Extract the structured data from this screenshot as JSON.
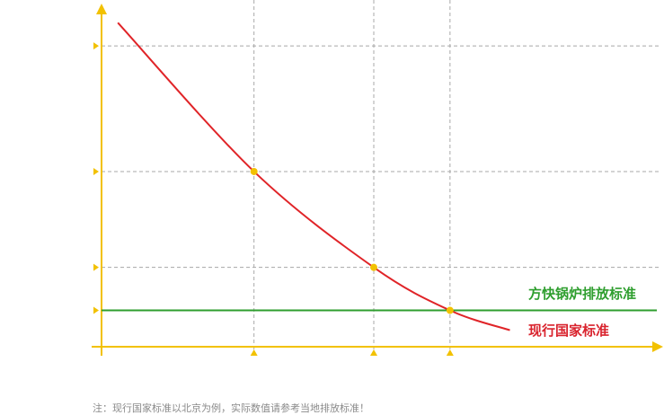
{
  "chart_data": {
    "type": "line",
    "xlabel": "",
    "ylabel": "",
    "grid": "dashed",
    "colors": {
      "axis": "#f2c100",
      "grid": "#a8a8a8",
      "curve": "#e02428",
      "standard": "#2e9e2e",
      "marker": "#f2c100"
    },
    "curve": {
      "name": "现行国家标准",
      "points": [
        {
          "x": 0.03,
          "y": 0.98
        },
        {
          "x": 0.28,
          "y": 0.53
        },
        {
          "x": 0.5,
          "y": 0.24
        },
        {
          "x": 0.64,
          "y": 0.11
        },
        {
          "x": 0.75,
          "y": 0.05
        }
      ]
    },
    "marked_points": [
      {
        "x": 0.28,
        "y": 0.53
      },
      {
        "x": 0.5,
        "y": 0.24
      },
      {
        "x": 0.64,
        "y": 0.11
      }
    ],
    "standard_line": {
      "name": "方快锅炉排放标准",
      "y": 0.11
    },
    "y_grid": [
      0.91,
      0.53,
      0.24
    ],
    "x_grid": [
      0.28,
      0.5,
      0.64
    ],
    "y_ticks": [
      0.91,
      0.53,
      0.24,
      0.11
    ],
    "x_ticks": [
      0.28,
      0.5,
      0.64
    ]
  },
  "labels": {
    "standard": "方快锅炉排放标准",
    "current": "现行国家标准"
  },
  "footnote": "注：现行国家标准以北京为例，实际数值请参考当地排放标准！"
}
